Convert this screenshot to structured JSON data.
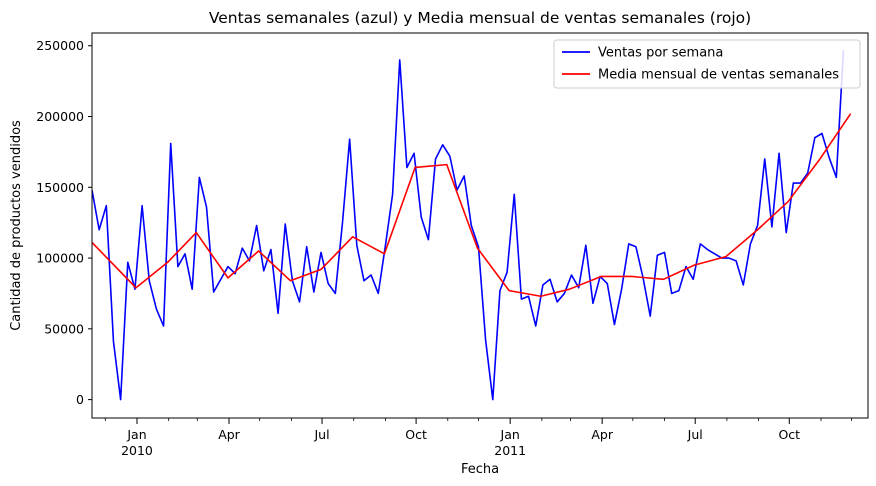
{
  "chart_data": {
    "type": "line",
    "title": "Ventas semanales (azul) y Media mensual de ventas semanales (rojo)",
    "xlabel": "Fecha",
    "ylabel": "Cantidad de productos vendidos",
    "xlim": [
      "2009-11-18",
      "2011-12-17"
    ],
    "ylim": [
      -13000,
      259000
    ],
    "y_ticks": [
      0,
      50000,
      100000,
      150000,
      200000,
      250000
    ],
    "x_ticks": [
      {
        "date": "2010-01-01",
        "label": "Jan",
        "year": "2010"
      },
      {
        "date": "2010-04-01",
        "label": "Apr",
        "year": ""
      },
      {
        "date": "2010-07-01",
        "label": "Jul",
        "year": ""
      },
      {
        "date": "2010-10-01",
        "label": "Oct",
        "year": ""
      },
      {
        "date": "2011-01-01",
        "label": "Jan",
        "year": "2011"
      },
      {
        "date": "2011-04-01",
        "label": "Apr",
        "year": ""
      },
      {
        "date": "2011-07-01",
        "label": "Jul",
        "year": ""
      },
      {
        "date": "2011-10-01",
        "label": "Oct",
        "year": ""
      }
    ],
    "minor_ticks": [
      "2009-12-01",
      "2010-02-01",
      "2010-03-01",
      "2010-05-01",
      "2010-06-01",
      "2010-08-01",
      "2010-09-01",
      "2010-11-01",
      "2010-12-01",
      "2011-02-01",
      "2011-03-01",
      "2011-05-01",
      "2011-06-01",
      "2011-08-01",
      "2011-09-01",
      "2011-11-01",
      "2011-12-01"
    ],
    "legend_position": "upper right",
    "grid": false,
    "series": [
      {
        "name": "Ventas por semana",
        "color": "#0000ff",
        "points": [
          [
            "2009-11-18",
            148000
          ],
          [
            "2009-11-25",
            120000
          ],
          [
            "2009-12-02",
            137000
          ],
          [
            "2009-12-09",
            41000
          ],
          [
            "2009-12-16",
            0
          ],
          [
            "2009-12-23",
            97000
          ],
          [
            "2009-12-30",
            78000
          ],
          [
            "2010-01-06",
            137000
          ],
          [
            "2010-01-13",
            84000
          ],
          [
            "2010-01-20",
            64000
          ],
          [
            "2010-01-27",
            52000
          ],
          [
            "2010-02-03",
            181000
          ],
          [
            "2010-02-10",
            94000
          ],
          [
            "2010-02-17",
            103000
          ],
          [
            "2010-02-24",
            78000
          ],
          [
            "2010-03-03",
            157000
          ],
          [
            "2010-03-10",
            136000
          ],
          [
            "2010-03-17",
            76000
          ],
          [
            "2010-03-24",
            85000
          ],
          [
            "2010-03-31",
            94000
          ],
          [
            "2010-04-07",
            89000
          ],
          [
            "2010-04-14",
            107000
          ],
          [
            "2010-04-21",
            98000
          ],
          [
            "2010-04-28",
            123000
          ],
          [
            "2010-05-05",
            91000
          ],
          [
            "2010-05-12",
            106000
          ],
          [
            "2010-05-19",
            61000
          ],
          [
            "2010-05-26",
            124000
          ],
          [
            "2010-06-02",
            84000
          ],
          [
            "2010-06-09",
            69000
          ],
          [
            "2010-06-16",
            108000
          ],
          [
            "2010-06-23",
            76000
          ],
          [
            "2010-06-30",
            104000
          ],
          [
            "2010-07-07",
            82000
          ],
          [
            "2010-07-14",
            75000
          ],
          [
            "2010-07-21",
            125000
          ],
          [
            "2010-07-28",
            184000
          ],
          [
            "2010-08-04",
            109000
          ],
          [
            "2010-08-11",
            84000
          ],
          [
            "2010-08-18",
            88000
          ],
          [
            "2010-08-25",
            75000
          ],
          [
            "2010-09-01",
            109000
          ],
          [
            "2010-09-08",
            145000
          ],
          [
            "2010-09-15",
            240000
          ],
          [
            "2010-09-22",
            164000
          ],
          [
            "2010-09-29",
            174000
          ],
          [
            "2010-10-06",
            129000
          ],
          [
            "2010-10-13",
            113000
          ],
          [
            "2010-10-20",
            170000
          ],
          [
            "2010-10-27",
            180000
          ],
          [
            "2010-11-03",
            172000
          ],
          [
            "2010-11-10",
            148000
          ],
          [
            "2010-11-17",
            158000
          ],
          [
            "2010-11-24",
            123000
          ],
          [
            "2010-12-01",
            108000
          ],
          [
            "2010-12-08",
            42000
          ],
          [
            "2010-12-15",
            0
          ],
          [
            "2010-12-22",
            77000
          ],
          [
            "2010-12-29",
            90000
          ],
          [
            "2011-01-05",
            145000
          ],
          [
            "2011-01-12",
            71000
          ],
          [
            "2011-01-19",
            73000
          ],
          [
            "2011-01-26",
            52000
          ],
          [
            "2011-02-02",
            81000
          ],
          [
            "2011-02-09",
            85000
          ],
          [
            "2011-02-16",
            69000
          ],
          [
            "2011-02-23",
            75000
          ],
          [
            "2011-03-02",
            88000
          ],
          [
            "2011-03-09",
            79000
          ],
          [
            "2011-03-16",
            109000
          ],
          [
            "2011-03-23",
            68000
          ],
          [
            "2011-03-30",
            87000
          ],
          [
            "2011-04-06",
            82000
          ],
          [
            "2011-04-13",
            53000
          ],
          [
            "2011-04-20",
            78000
          ],
          [
            "2011-04-27",
            110000
          ],
          [
            "2011-05-04",
            108000
          ],
          [
            "2011-05-11",
            86000
          ],
          [
            "2011-05-18",
            59000
          ],
          [
            "2011-05-25",
            102000
          ],
          [
            "2011-06-01",
            104000
          ],
          [
            "2011-06-08",
            75000
          ],
          [
            "2011-06-15",
            77000
          ],
          [
            "2011-06-22",
            94000
          ],
          [
            "2011-06-29",
            85000
          ],
          [
            "2011-07-06",
            110000
          ],
          [
            "2011-07-13",
            106000
          ],
          [
            "2011-07-20",
            103000
          ],
          [
            "2011-07-27",
            100000
          ],
          [
            "2011-08-03",
            100000
          ],
          [
            "2011-08-10",
            98000
          ],
          [
            "2011-08-17",
            81000
          ],
          [
            "2011-08-24",
            110000
          ],
          [
            "2011-08-31",
            123000
          ],
          [
            "2011-09-07",
            170000
          ],
          [
            "2011-09-14",
            122000
          ],
          [
            "2011-09-21",
            174000
          ],
          [
            "2011-09-28",
            118000
          ],
          [
            "2011-10-05",
            153000
          ],
          [
            "2011-10-12",
            153000
          ],
          [
            "2011-10-19",
            160000
          ],
          [
            "2011-10-26",
            185000
          ],
          [
            "2011-11-02",
            188000
          ],
          [
            "2011-11-09",
            171000
          ],
          [
            "2011-11-16",
            157000
          ],
          [
            "2011-11-23",
            247000
          ]
        ]
      },
      {
        "name": "Media mensual de ventas semanales",
        "color": "#ff0000",
        "points": [
          [
            "2009-11-18",
            111000
          ],
          [
            "2009-12-31",
            79000
          ],
          [
            "2010-01-31",
            97000
          ],
          [
            "2010-02-28",
            118000
          ],
          [
            "2010-03-31",
            86000
          ],
          [
            "2010-04-30",
            105000
          ],
          [
            "2010-05-31",
            84000
          ],
          [
            "2010-06-30",
            92000
          ],
          [
            "2010-07-31",
            115000
          ],
          [
            "2010-08-31",
            103000
          ],
          [
            "2010-09-30",
            164000
          ],
          [
            "2010-10-31",
            166000
          ],
          [
            "2010-11-30",
            107000
          ],
          [
            "2010-12-31",
            77000
          ],
          [
            "2011-01-31",
            73000
          ],
          [
            "2011-02-28",
            78000
          ],
          [
            "2011-03-31",
            87000
          ],
          [
            "2011-04-30",
            87000
          ],
          [
            "2011-05-31",
            85000
          ],
          [
            "2011-06-30",
            95000
          ],
          [
            "2011-07-31",
            101000
          ],
          [
            "2011-08-31",
            120000
          ],
          [
            "2011-09-30",
            140000
          ],
          [
            "2011-10-31",
            170000
          ],
          [
            "2011-11-30",
            202000
          ]
        ]
      }
    ]
  }
}
